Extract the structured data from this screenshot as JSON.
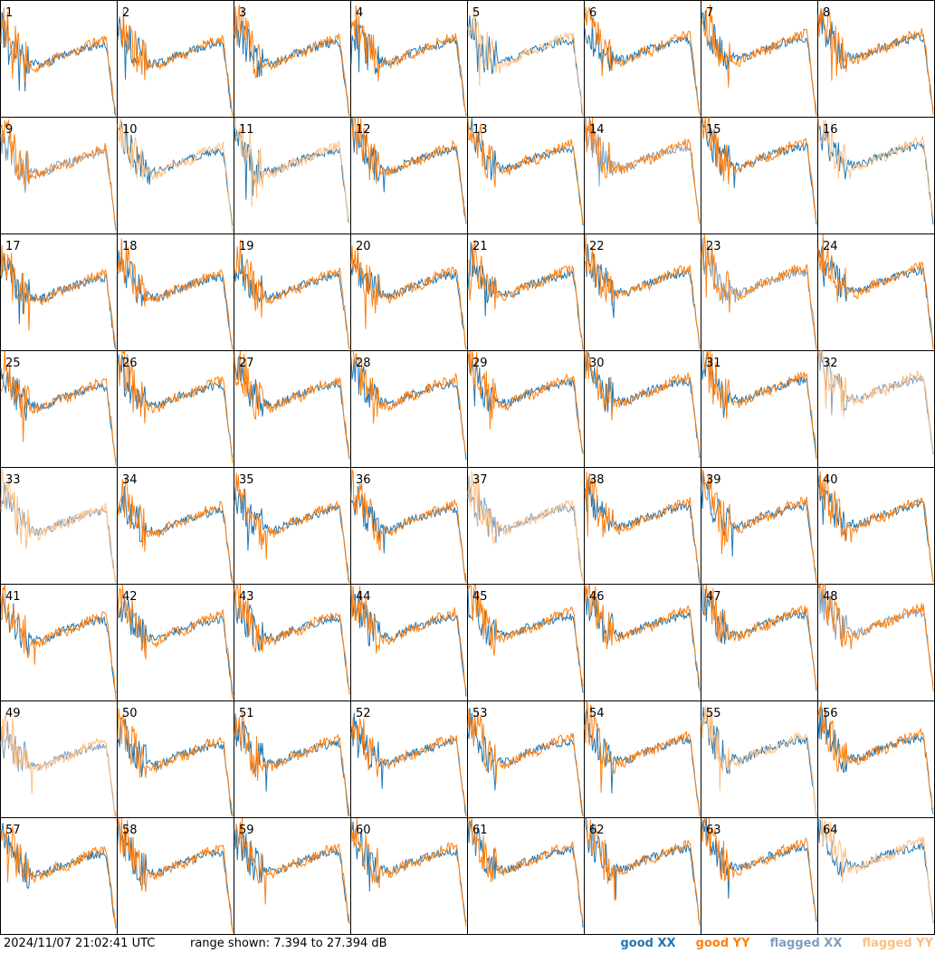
{
  "chart_data": {
    "type": "line",
    "description_note": "",
    "grid": {
      "rows": 8,
      "cols": 8
    },
    "panel_labels": [
      "1",
      "2",
      "3",
      "4",
      "5",
      "6",
      "7",
      "8",
      "9",
      "10",
      "11",
      "12",
      "13",
      "14",
      "15",
      "16",
      "17",
      "18",
      "19",
      "20",
      "21",
      "22",
      "23",
      "24",
      "25",
      "26",
      "27",
      "28",
      "29",
      "30",
      "31",
      "32",
      "33",
      "34",
      "35",
      "36",
      "37",
      "38",
      "39",
      "40",
      "41",
      "42",
      "43",
      "44",
      "45",
      "46",
      "47",
      "48",
      "49",
      "50",
      "51",
      "52",
      "53",
      "54",
      "55",
      "56",
      "57",
      "58",
      "59",
      "60",
      "61",
      "62",
      "63",
      "64"
    ],
    "ylim": [
      7.394,
      27.394
    ],
    "series_styles": {
      "good_xx": "#1f77b4",
      "good_yy": "#ff7f0e",
      "flagged_xx": "#7f9fbf",
      "flagged_yy": "#ffbf80"
    },
    "panel_status": {
      "5": {
        "xx": "good",
        "yy": "flagged"
      },
      "9": {
        "xx": "flagged",
        "yy": "good"
      },
      "10": {
        "xx": "good",
        "yy": "flagged"
      },
      "11": {
        "xx": "good",
        "yy": "flagged"
      },
      "14": {
        "xx": "flagged",
        "yy": "good"
      },
      "16": {
        "xx": "good",
        "yy": "flagged"
      },
      "23": {
        "xx": "flagged",
        "yy": "good"
      },
      "32": {
        "xx": "flagged",
        "yy": "flagged"
      },
      "33": {
        "xx": "flagged",
        "yy": "flagged"
      },
      "37": {
        "xx": "flagged",
        "yy": "flagged"
      },
      "48": {
        "xx": "flagged",
        "yy": "good"
      },
      "49": {
        "xx": "flagged",
        "yy": "flagged"
      },
      "55": {
        "xx": "good",
        "yy": "flagged"
      },
      "64": {
        "xx": "good",
        "yy": "flagged"
      }
    },
    "shape_profile_db": {
      "xx_typical": [
        24,
        22,
        19,
        18,
        17.5,
        18,
        19,
        19.5,
        20,
        20.5,
        21,
        21,
        8
      ],
      "yy_typical": [
        25,
        23,
        19,
        17.5,
        17,
        18,
        19,
        19,
        20,
        21,
        21.5,
        22,
        8
      ]
    }
  },
  "footer": {
    "timestamp": "2024/11/07 21:02:41 UTC",
    "range": "range shown: 7.394 to 27.394 dB"
  },
  "legend": [
    {
      "label": "good XX",
      "color": "#1f77b4"
    },
    {
      "label": "good YY",
      "color": "#ff7f0e"
    },
    {
      "label": "flagged XX",
      "color": "#7f9fbf"
    },
    {
      "label": "flagged YY",
      "color": "#ffbf80"
    }
  ]
}
